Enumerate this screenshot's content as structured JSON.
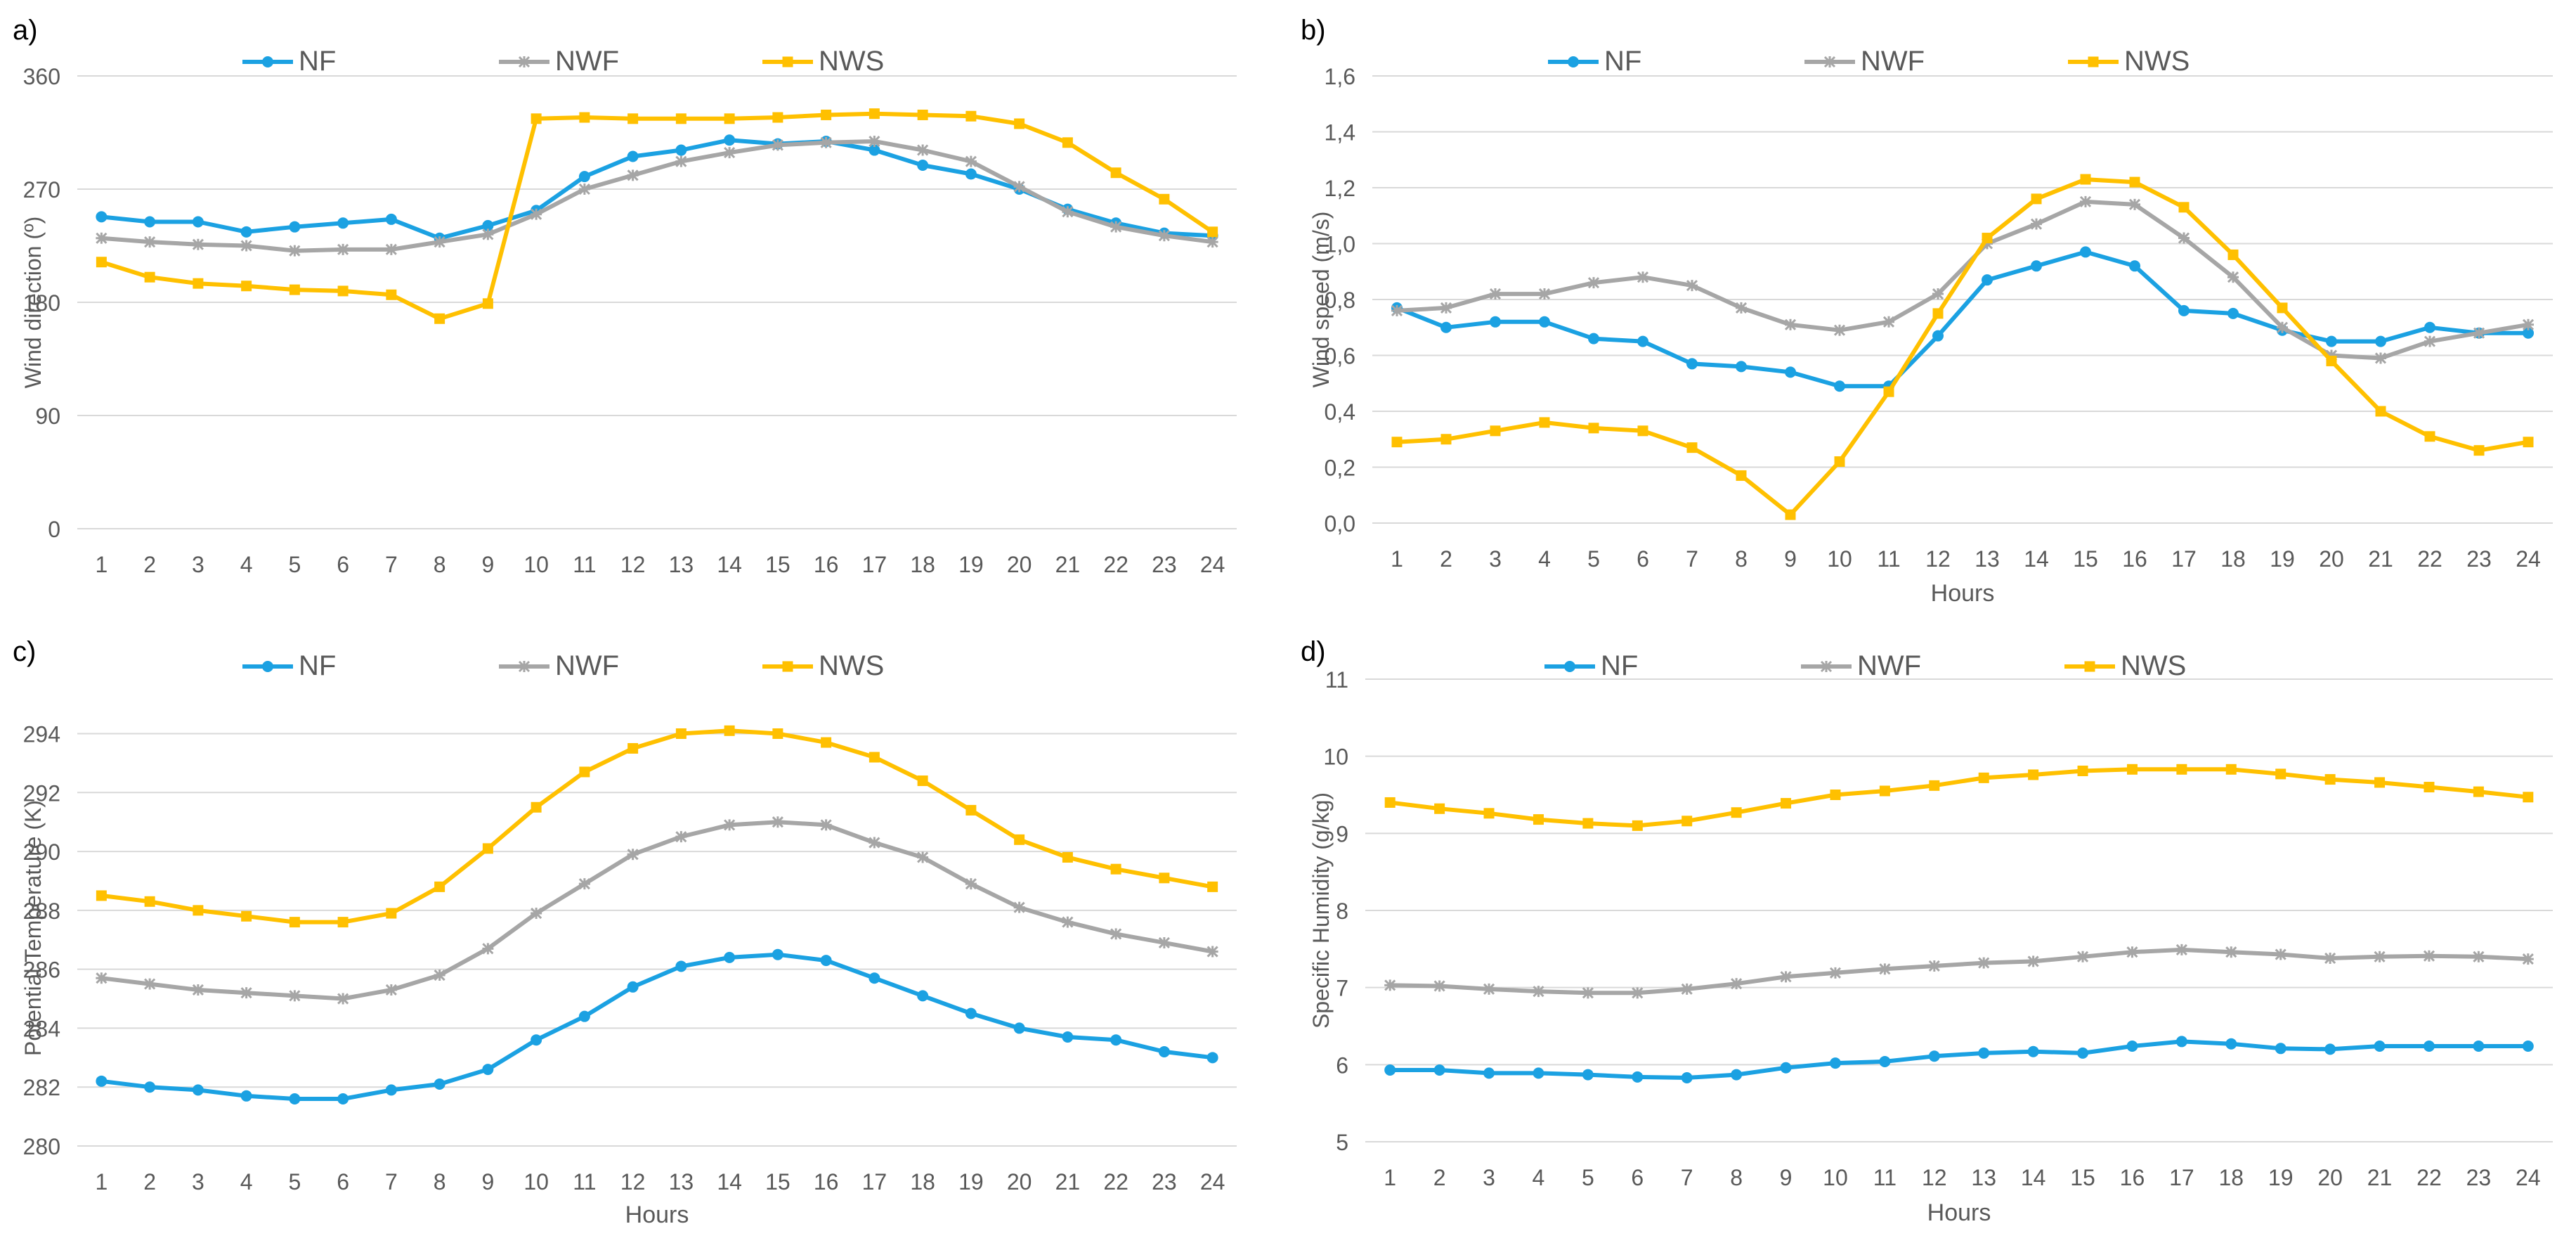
{
  "colors": {
    "NF": "#1ba1e2",
    "NWF": "#a6a6a6",
    "NWS": "#ffc000",
    "grid": "#d9d9d9",
    "text": "#595959"
  },
  "chart_data": [
    {
      "panel_label": "a)",
      "type": "line",
      "title": "",
      "xlabel": "",
      "ylabel": "Wind direction (º)",
      "categories": [
        "1",
        "2",
        "3",
        "4",
        "5",
        "6",
        "7",
        "8",
        "9",
        "10",
        "11",
        "12",
        "13",
        "14",
        "15",
        "16",
        "17",
        "18",
        "19",
        "20",
        "21",
        "22",
        "23",
        "24"
      ],
      "yticks": [
        "0",
        "90",
        "180",
        "270",
        "360"
      ],
      "ylim": [
        0,
        360
      ],
      "legend": [
        "NF",
        "NWF",
        "NWS"
      ],
      "series": [
        {
          "name": "NF",
          "marker": "circle",
          "values": [
            248,
            244,
            244,
            236,
            240,
            243,
            246,
            231,
            241,
            253,
            280,
            296,
            301,
            309,
            306,
            308,
            301,
            289,
            282,
            270,
            254,
            243,
            235,
            233
          ]
        },
        {
          "name": "NWF",
          "marker": "star",
          "values": [
            231,
            228,
            226,
            225,
            221,
            222,
            222,
            228,
            234,
            250,
            270,
            281,
            292,
            299,
            305,
            307,
            308,
            301,
            292,
            272,
            252,
            240,
            233,
            228
          ]
        },
        {
          "name": "NWS",
          "marker": "square",
          "values": [
            212,
            200,
            195,
            193,
            190,
            189,
            186,
            167,
            179,
            326,
            327,
            326,
            326,
            326,
            327,
            329,
            330,
            329,
            328,
            322,
            307,
            283,
            262,
            236
          ]
        }
      ]
    },
    {
      "panel_label": "b)",
      "type": "line",
      "title": "",
      "xlabel": "Hours",
      "ylabel": "Wind speed (m/s)",
      "categories": [
        "1",
        "2",
        "3",
        "4",
        "5",
        "6",
        "7",
        "8",
        "9",
        "10",
        "11",
        "12",
        "13",
        "14",
        "15",
        "16",
        "17",
        "18",
        "19",
        "20",
        "21",
        "22",
        "23",
        "24"
      ],
      "yticks": [
        "0,0",
        "0,2",
        "0,4",
        "0,6",
        "0,8",
        "1,0",
        "1,2",
        "1,4",
        "1,6"
      ],
      "ylim": [
        0,
        1.6
      ],
      "legend": [
        "NF",
        "NWF",
        "NWS"
      ],
      "series": [
        {
          "name": "NF",
          "marker": "circle",
          "values": [
            0.77,
            0.7,
            0.72,
            0.72,
            0.66,
            0.65,
            0.57,
            0.56,
            0.54,
            0.49,
            0.49,
            0.67,
            0.87,
            0.92,
            0.97,
            0.92,
            0.76,
            0.75,
            0.69,
            0.65,
            0.65,
            0.7,
            0.68,
            0.68
          ]
        },
        {
          "name": "NWF",
          "marker": "star",
          "values": [
            0.76,
            0.77,
            0.82,
            0.82,
            0.86,
            0.88,
            0.85,
            0.77,
            0.71,
            0.69,
            0.72,
            0.82,
            1.0,
            1.07,
            1.15,
            1.14,
            1.02,
            0.88,
            0.7,
            0.6,
            0.59,
            0.65,
            0.68,
            0.71
          ]
        },
        {
          "name": "NWS",
          "marker": "square",
          "values": [
            0.29,
            0.3,
            0.33,
            0.36,
            0.34,
            0.33,
            0.27,
            0.17,
            0.03,
            0.22,
            0.47,
            0.75,
            1.02,
            1.16,
            1.23,
            1.22,
            1.13,
            0.96,
            0.77,
            0.58,
            0.4,
            0.31,
            0.26,
            0.29
          ]
        }
      ]
    },
    {
      "panel_label": "c)",
      "type": "line",
      "title": "",
      "xlabel": "Hours",
      "ylabel": "Potential Temperature (K)",
      "categories": [
        "1",
        "2",
        "3",
        "4",
        "5",
        "6",
        "7",
        "8",
        "9",
        "10",
        "11",
        "12",
        "13",
        "14",
        "15",
        "16",
        "17",
        "18",
        "19",
        "20",
        "21",
        "22",
        "23",
        "24"
      ],
      "yticks": [
        "280",
        "282",
        "284",
        "286",
        "288",
        "290",
        "292",
        "294"
      ],
      "ylim": [
        280,
        294.8
      ],
      "legend": [
        "NF",
        "NWF",
        "NWS"
      ],
      "series": [
        {
          "name": "NF",
          "marker": "circle",
          "values": [
            282.2,
            282.0,
            281.9,
            281.7,
            281.6,
            281.6,
            281.9,
            282.1,
            282.6,
            283.6,
            284.4,
            285.4,
            286.1,
            286.4,
            286.5,
            286.3,
            285.7,
            285.1,
            284.5,
            284.0,
            283.7,
            283.6,
            283.2,
            283.0
          ]
        },
        {
          "name": "NWF",
          "marker": "star",
          "values": [
            285.7,
            285.5,
            285.3,
            285.2,
            285.1,
            285.0,
            285.3,
            285.8,
            286.7,
            287.9,
            288.9,
            289.9,
            290.5,
            290.9,
            291.0,
            290.9,
            290.3,
            289.8,
            288.9,
            288.1,
            287.6,
            287.2,
            286.9,
            286.6
          ]
        },
        {
          "name": "NWS",
          "marker": "square",
          "values": [
            288.5,
            288.3,
            288.0,
            287.8,
            287.6,
            287.6,
            287.9,
            288.8,
            290.1,
            291.5,
            292.7,
            293.5,
            294.0,
            294.1,
            294.0,
            293.7,
            293.2,
            292.4,
            291.4,
            290.4,
            289.8,
            289.4,
            289.1,
            288.8
          ]
        }
      ]
    },
    {
      "panel_label": "d)",
      "type": "line",
      "title": "",
      "xlabel": "Hours",
      "ylabel": "Specific Humidity (g/kg)",
      "categories": [
        "1",
        "2",
        "3",
        "4",
        "5",
        "6",
        "7",
        "8",
        "9",
        "10",
        "11",
        "12",
        "13",
        "14",
        "15",
        "16",
        "17",
        "18",
        "19",
        "20",
        "21",
        "22",
        "23",
        "24"
      ],
      "yticks": [
        "5",
        "6",
        "7",
        "8",
        "9",
        "10",
        "11"
      ],
      "ylim": [
        5,
        11
      ],
      "legend": [
        "NF",
        "NWF",
        "NWS"
      ],
      "series": [
        {
          "name": "NF",
          "marker": "circle",
          "values": [
            5.93,
            5.93,
            5.89,
            5.89,
            5.87,
            5.84,
            5.83,
            5.87,
            5.96,
            6.02,
            6.04,
            6.11,
            6.15,
            6.17,
            6.15,
            6.24,
            6.3,
            6.27,
            6.21,
            6.2,
            6.24,
            6.24,
            6.24,
            6.24
          ]
        },
        {
          "name": "NWF",
          "marker": "star",
          "values": [
            7.03,
            7.02,
            6.98,
            6.95,
            6.93,
            6.93,
            6.98,
            7.05,
            7.14,
            7.19,
            7.24,
            7.28,
            7.32,
            7.34,
            7.4,
            7.46,
            7.49,
            7.46,
            7.43,
            7.38,
            7.4,
            7.41,
            7.4,
            7.37
          ]
        },
        {
          "name": "NWS",
          "marker": "square",
          "values": [
            9.4,
            9.32,
            9.26,
            9.18,
            9.13,
            9.1,
            9.16,
            9.27,
            9.39,
            9.5,
            9.55,
            9.62,
            9.72,
            9.76,
            9.81,
            9.83,
            9.83,
            9.83,
            9.77,
            9.7,
            9.66,
            9.6,
            9.54,
            9.47
          ]
        }
      ]
    }
  ]
}
